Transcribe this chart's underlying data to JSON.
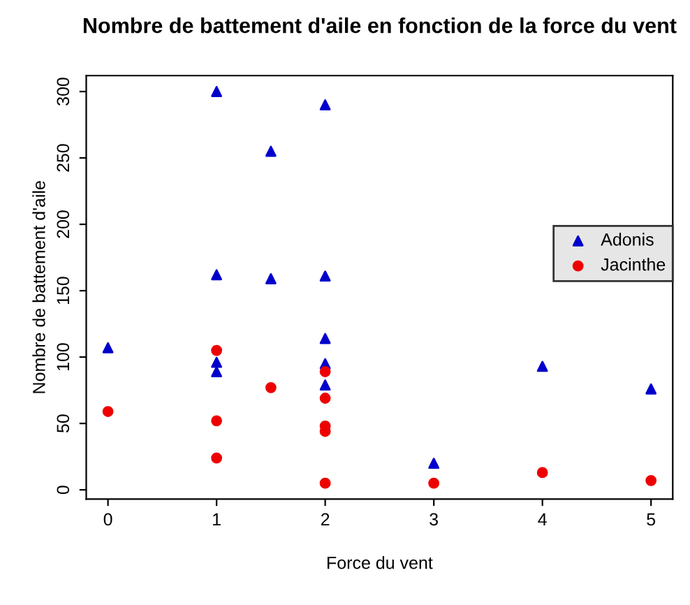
{
  "chart_data": {
    "type": "scatter",
    "title": "Nombre de battement d'aile en fonction de la force du vent",
    "xlabel": "Force du vent",
    "ylabel": "Nombre de battement d'aile",
    "series": [
      {
        "name": "Adonis",
        "color": "#0000cc",
        "marker": "triangle",
        "x": [
          0,
          1,
          1,
          1,
          1,
          1.5,
          1.5,
          2,
          2,
          2,
          2,
          2,
          3,
          4,
          5
        ],
        "values": [
          107,
          300,
          162,
          96,
          89,
          255,
          159,
          290,
          161,
          114,
          95,
          79,
          20,
          93,
          76
        ]
      },
      {
        "name": "Jacinthe",
        "color": "#ee0000",
        "marker": "circle",
        "x": [
          0,
          1,
          1,
          1,
          1.5,
          2,
          2,
          2,
          2,
          2,
          3,
          4,
          5
        ],
        "values": [
          59,
          105,
          52,
          24,
          77,
          89,
          69,
          48,
          44,
          5,
          5,
          13,
          7
        ]
      }
    ],
    "xlim": [
      -0.2,
      5.2
    ],
    "ylim": [
      -7,
      312
    ],
    "xticks": [
      0,
      1,
      2,
      3,
      4,
      5
    ],
    "yticks": [
      0,
      50,
      100,
      150,
      200,
      250,
      300
    ],
    "grid": false,
    "legend": "right"
  }
}
